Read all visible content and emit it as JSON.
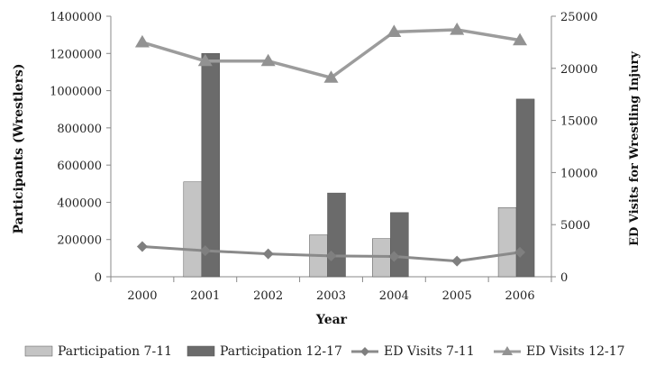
{
  "chart_data": {
    "type": "bar",
    "categories": [
      "2000",
      "2001",
      "2002",
      "2003",
      "2004",
      "2005",
      "2006"
    ],
    "xlabel": "Year",
    "ylabel_left": "Participants (Wrestlers)",
    "ylabel_right": "ED Visits for Wrestling Injury",
    "ylim_left": [
      0,
      1400000
    ],
    "ylim_right": [
      0,
      25000
    ],
    "yticks_left": [
      "0",
      "200000",
      "400000",
      "600000",
      "800000",
      "1000000",
      "1200000",
      "1400000"
    ],
    "yticks_right": [
      "0",
      "5000",
      "10000",
      "15000",
      "20000",
      "25000"
    ],
    "grid": false,
    "legend_position": "bottom",
    "series": [
      {
        "name": "Participation 7-11",
        "kind": "bar",
        "axis": "left",
        "color": "#c4c4c4",
        "values": [
          null,
          510000,
          null,
          225000,
          205000,
          null,
          372000
        ]
      },
      {
        "name": "Participation 12-17",
        "kind": "bar",
        "axis": "left",
        "color": "#6b6b6b",
        "values": [
          null,
          1200000,
          null,
          450000,
          345000,
          null,
          955000
        ]
      },
      {
        "name": "ED Visits 7-11",
        "kind": "line",
        "marker": "diamond",
        "axis": "right",
        "color": "#8a8a8a",
        "x": [
          0.5,
          1.5,
          2.5,
          3.5,
          4.5,
          5.5,
          6.5
        ],
        "values": [
          2900,
          2500,
          2200,
          2000,
          1950,
          1500,
          2350
        ]
      },
      {
        "name": "ED Visits 12-17",
        "kind": "line",
        "marker": "triangle",
        "axis": "right",
        "color": "#9c9c9c",
        "x": [
          0.5,
          1.5,
          2.5,
          3.5,
          4.5,
          5.5,
          6.5
        ],
        "values": [
          22500,
          20700,
          20700,
          19100,
          23500,
          23700,
          22700
        ]
      }
    ]
  }
}
